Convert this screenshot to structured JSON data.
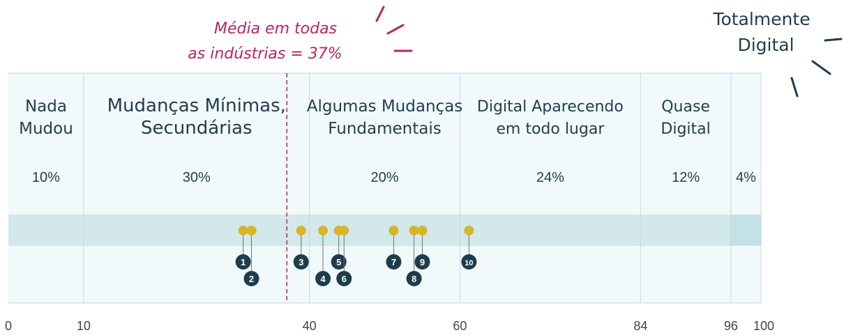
{
  "chart_data": {
    "type": "scatter",
    "title": "",
    "xlabel": "",
    "ylabel": "",
    "xlim": [
      0,
      100
    ],
    "x_ticks": [
      0,
      10,
      40,
      60,
      84,
      96,
      100
    ],
    "segments": [
      {
        "start": 0,
        "end": 10,
        "label_lines": [
          "Nada",
          "Mudou"
        ],
        "percent_label": "10%"
      },
      {
        "start": 10,
        "end": 40,
        "label_lines": [
          "Mudanças Mínimas,",
          "Secundárias"
        ],
        "percent_label": "30%"
      },
      {
        "start": 40,
        "end": 60,
        "label_lines": [
          "Algumas Mudanças",
          "Fundamentais"
        ],
        "percent_label": "20%"
      },
      {
        "start": 60,
        "end": 84,
        "label_lines": [
          "Digital Aparecendo",
          "em todo lugar"
        ],
        "percent_label": "24%"
      },
      {
        "start": 84,
        "end": 96,
        "label_lines": [
          "Quase",
          "Digital"
        ],
        "percent_label": "12%"
      },
      {
        "start": 96,
        "end": 100,
        "label_lines": [],
        "percent_label": "4%"
      }
    ],
    "outside_label_lines": [
      "Totalmente",
      "Digital"
    ],
    "average": {
      "x": 37,
      "label_lines": [
        "Média em todas",
        "as indústrias = 37%"
      ]
    },
    "points": [
      {
        "id": "1",
        "x": 31.2,
        "row": 1
      },
      {
        "id": "2",
        "x": 32.3,
        "row": 2
      },
      {
        "id": "3",
        "x": 38.9,
        "row": 1
      },
      {
        "id": "4",
        "x": 41.8,
        "row": 2
      },
      {
        "id": "5",
        "x": 43.9,
        "row": 1
      },
      {
        "id": "6",
        "x": 44.6,
        "row": 2
      },
      {
        "id": "7",
        "x": 51.2,
        "row": 1
      },
      {
        "id": "8",
        "x": 53.9,
        "row": 2
      },
      {
        "id": "9",
        "x": 55.0,
        "row": 1
      },
      {
        "id": "10",
        "x": 61.2,
        "row": 1
      }
    ]
  },
  "colors": {
    "panel_bg": "#f2f9fa",
    "band": "#d3e8ea",
    "band_right": "#c4e1e5",
    "divider": "#c9d6de",
    "heading": "#1f3d4d",
    "average": "#b82463",
    "point": "#d8b42a",
    "badge": "#1d3c4c",
    "tick": "#444444"
  }
}
